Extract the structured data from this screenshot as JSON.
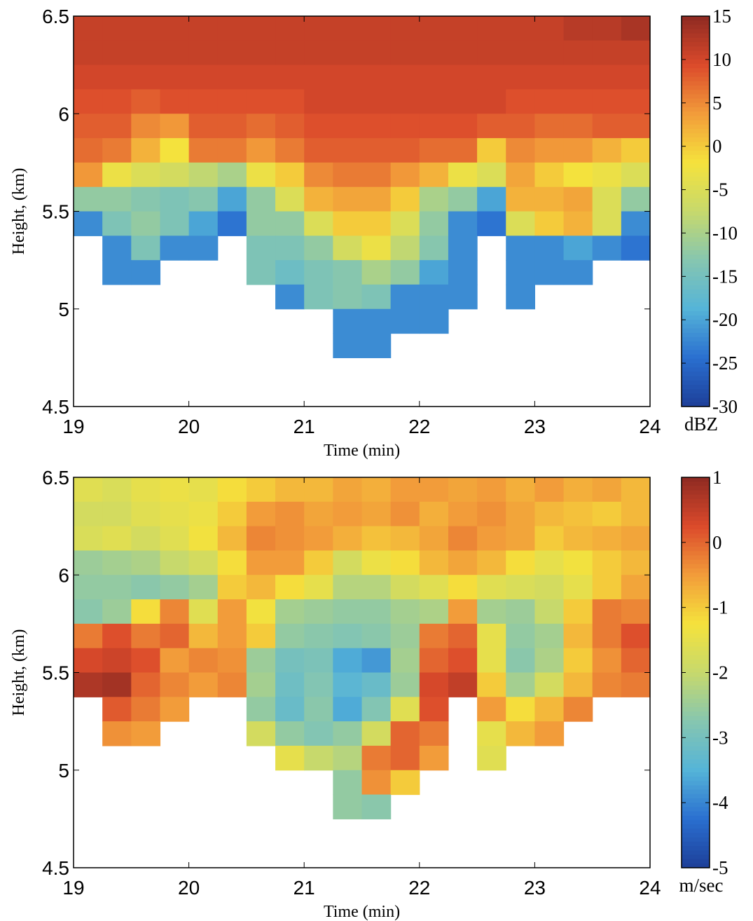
{
  "chart_data": [
    {
      "type": "heatmap",
      "x_label": "Time (min)",
      "y_label": "Height, (km)",
      "colorbar_label": "dBZ",
      "xlim": [
        19,
        24
      ],
      "xticks": [
        19,
        20,
        21,
        22,
        23,
        24
      ],
      "ylim": [
        4.5,
        6.5
      ],
      "yticks": [
        4.5,
        5,
        5.5,
        6,
        6.5
      ],
      "zlim": [
        -30,
        15
      ],
      "zticks": [
        15,
        10,
        5,
        0,
        -5,
        -10,
        -15,
        -20,
        -25,
        -30
      ],
      "colormap": [
        "#1d3f99",
        "#2a6fd0",
        "#55b4d8",
        "#86c6b0",
        "#c7d96c",
        "#f5e23c",
        "#f29c3a",
        "#db4a2b",
        "#8e2a22"
      ],
      "x": [
        19.125,
        19.375,
        19.625,
        19.875,
        20.125,
        20.375,
        20.625,
        20.875,
        21.125,
        21.375,
        21.625,
        21.875,
        22.125,
        22.375,
        22.625,
        22.875,
        23.125,
        23.375,
        23.625,
        23.875
      ],
      "y": [
        6.4375,
        6.3125,
        6.1875,
        6.0625,
        5.9375,
        5.8125,
        5.6875,
        5.5625,
        5.4375,
        5.3125,
        5.1875,
        5.0625,
        4.9375,
        4.8125
      ],
      "z": [
        [
          11,
          11,
          11,
          11,
          11,
          11,
          11,
          11,
          11,
          11,
          11,
          11,
          11,
          11,
          11,
          11,
          11,
          12,
          12,
          13
        ],
        [
          11,
          11,
          11,
          11,
          11,
          11,
          11,
          11,
          11,
          11,
          11,
          11,
          11,
          11,
          11,
          11,
          11,
          11,
          11,
          11
        ],
        [
          10,
          10,
          10,
          10,
          10,
          10,
          10,
          10,
          10,
          10,
          10,
          10,
          10,
          10,
          10,
          10,
          10,
          10,
          10,
          10
        ],
        [
          9,
          9,
          8,
          9,
          9,
          9,
          9,
          9,
          10,
          10,
          10,
          10,
          10,
          10,
          10,
          9,
          9,
          9,
          9,
          9
        ],
        [
          8,
          8,
          5,
          4,
          8,
          8,
          7,
          8,
          9,
          9,
          9,
          9,
          9,
          9,
          8,
          8,
          7,
          7,
          8,
          8
        ],
        [
          7,
          6,
          2,
          -2,
          6,
          6,
          4,
          6,
          8,
          8,
          8,
          8,
          7,
          7,
          0,
          5,
          4,
          4,
          2,
          0
        ],
        [
          4,
          -3,
          -5,
          -6,
          -8,
          -10,
          -3,
          0,
          5,
          6,
          6,
          4,
          2,
          -3,
          -5,
          3,
          0,
          -2,
          -3,
          -5
        ],
        [
          -12,
          -12,
          -13,
          -14,
          -13,
          -20,
          -12,
          -5,
          2,
          3,
          3,
          0,
          -10,
          -12,
          -20,
          2,
          2,
          3,
          -5,
          -12
        ],
        [
          -22,
          -14,
          -12,
          -14,
          -20,
          -24,
          -12,
          -12,
          -5,
          0,
          0,
          -5,
          -12,
          -22,
          -24,
          -5,
          0,
          2,
          -5,
          -22
        ],
        [
          null,
          -22,
          -14,
          -22,
          -22,
          null,
          -14,
          -14,
          -12,
          -6,
          -3,
          -8,
          -13,
          -22,
          null,
          -22,
          -22,
          -20,
          -22,
          -24
        ],
        [
          null,
          -22,
          -22,
          null,
          null,
          null,
          -14,
          -16,
          -14,
          -13,
          -10,
          -12,
          -20,
          -22,
          null,
          -22,
          -22,
          -22,
          null,
          null
        ],
        [
          null,
          null,
          null,
          null,
          null,
          null,
          null,
          -22,
          -14,
          -13,
          -14,
          -22,
          -22,
          -22,
          null,
          -22,
          null,
          null,
          null,
          null
        ],
        [
          null,
          null,
          null,
          null,
          null,
          null,
          null,
          null,
          null,
          -22,
          -22,
          -22,
          -22,
          null,
          null,
          null,
          null,
          null,
          null,
          null
        ],
        [
          null,
          null,
          null,
          null,
          null,
          null,
          null,
          null,
          null,
          -22,
          -22,
          null,
          null,
          null,
          null,
          null,
          null,
          null,
          null,
          null
        ]
      ]
    },
    {
      "type": "heatmap",
      "x_label": "Time (min)",
      "y_label": "Height, (km)",
      "colorbar_label": "m/sec",
      "xlim": [
        19,
        24
      ],
      "xticks": [
        19,
        20,
        21,
        22,
        23,
        24
      ],
      "ylim": [
        4.5,
        6.5
      ],
      "yticks": [
        4.5,
        5,
        5.5,
        6,
        6.5
      ],
      "zlim": [
        -5,
        1
      ],
      "zticks": [
        1,
        0,
        -1,
        -2,
        -3,
        -4,
        -5
      ],
      "colormap": [
        "#1d3f99",
        "#2a6fd0",
        "#55b4d8",
        "#86c6b0",
        "#c7d96c",
        "#f5e23c",
        "#f29c3a",
        "#db4a2b",
        "#8e2a22"
      ],
      "x": [
        19.125,
        19.375,
        19.625,
        19.875,
        20.125,
        20.375,
        20.625,
        20.875,
        21.125,
        21.375,
        21.625,
        21.875,
        22.125,
        22.375,
        22.625,
        22.875,
        23.125,
        23.375,
        23.625,
        23.875
      ],
      "y": [
        6.4375,
        6.3125,
        6.1875,
        6.0625,
        5.9375,
        5.8125,
        5.6875,
        5.5625,
        5.4375,
        5.3125,
        5.1875,
        5.0625,
        4.9375,
        4.8125
      ],
      "z": [
        [
          -1.6,
          -1.7,
          -1.5,
          -1.4,
          -1.5,
          -1.2,
          -1,
          -0.8,
          -0.8,
          -0.6,
          -0.7,
          -0.5,
          -0.5,
          -0.6,
          -0.5,
          -0.7,
          -0.5,
          -0.7,
          -0.6,
          -0.8
        ],
        [
          -1.8,
          -1.8,
          -1.6,
          -1.5,
          -1.4,
          -1,
          -0.5,
          -0.4,
          -0.6,
          -0.5,
          -0.6,
          -0.4,
          -0.7,
          -0.5,
          -0.4,
          -0.6,
          -0.8,
          -0.9,
          -1,
          -0.8
        ],
        [
          -1.7,
          -1.6,
          -1.8,
          -1.6,
          -1.3,
          -0.8,
          -0.3,
          -0.4,
          -0.5,
          -0.7,
          -0.9,
          -0.8,
          -0.6,
          -0.3,
          -0.5,
          -0.6,
          -1,
          -0.8,
          -0.7,
          -0.6
        ],
        [
          -2.5,
          -2.4,
          -2.3,
          -2,
          -1.8,
          -1.2,
          -0.5,
          -0.5,
          -1,
          -1.8,
          -1.4,
          -1.2,
          -0.8,
          -0.6,
          -0.8,
          -1.2,
          -1.5,
          -1.3,
          -1,
          -0.8
        ],
        [
          -2.6,
          -2.6,
          -2.7,
          -2.6,
          -2.4,
          -1,
          -0.8,
          -1.2,
          -1.5,
          -2.2,
          -2.2,
          -1.8,
          -1.6,
          -1.2,
          -1.6,
          -1.7,
          -1.8,
          -1.5,
          -1,
          -0.6
        ],
        [
          -2.7,
          -2.5,
          -1.2,
          -0.3,
          -1.6,
          -0.5,
          -1.3,
          -2.4,
          -2.5,
          -2.6,
          -2.6,
          -2.4,
          -2.3,
          -0.5,
          -2.4,
          -2.5,
          -2,
          -1,
          -0.2,
          -0.3
        ],
        [
          -0.2,
          0.2,
          -0.2,
          0,
          -0.8,
          -0.5,
          -1,
          -2.6,
          -2.7,
          -2.8,
          -2.7,
          -2.5,
          -0.2,
          0,
          -1.5,
          -2.6,
          -2.4,
          -0.8,
          -0.2,
          0.2
        ],
        [
          0.3,
          0.4,
          0.2,
          -0.5,
          -0.3,
          -0.4,
          -2.5,
          -3,
          -2.9,
          -3.6,
          -3.8,
          -2.4,
          0,
          0.2,
          -1.5,
          -2.7,
          -2.3,
          -1,
          -0.4,
          0
        ],
        [
          0.7,
          0.8,
          0,
          -0.3,
          -0.5,
          -0.3,
          -2.4,
          -3.1,
          -2.8,
          -3.4,
          -3.2,
          -2.5,
          0.3,
          0.5,
          -1,
          -2.4,
          -1.8,
          -0.8,
          -0.3,
          -0.2
        ],
        [
          null,
          0.1,
          -0.2,
          -0.5,
          null,
          null,
          -2.6,
          -3.2,
          -2.7,
          -3.6,
          -2.8,
          -1.6,
          0.2,
          null,
          -0.5,
          -1.2,
          -0.8,
          -0.3,
          null,
          null
        ],
        [
          null,
          -0.4,
          -0.5,
          null,
          null,
          null,
          -1.8,
          -2.6,
          -2.8,
          -2.6,
          -1.8,
          0,
          -0.2,
          null,
          -1.5,
          -0.8,
          -0.5,
          null,
          null,
          null
        ],
        [
          null,
          null,
          null,
          null,
          null,
          null,
          null,
          -1.5,
          -2,
          -2.2,
          -0.2,
          0,
          -0.5,
          null,
          -1.6,
          null,
          null,
          null,
          null,
          null
        ],
        [
          null,
          null,
          null,
          null,
          null,
          null,
          null,
          null,
          null,
          -2.6,
          -0.4,
          -1,
          null,
          null,
          null,
          null,
          null,
          null,
          null,
          null
        ],
        [
          null,
          null,
          null,
          null,
          null,
          null,
          null,
          null,
          null,
          -2.6,
          -2.7,
          null,
          null,
          null,
          null,
          null,
          null,
          null,
          null,
          null
        ]
      ]
    }
  ]
}
